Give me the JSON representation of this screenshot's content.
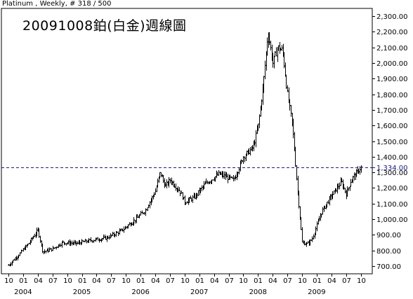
{
  "header": {
    "instrument": "Platinum",
    "period": "Weekly",
    "bar_count": "# 318 / 500"
  },
  "chart_data": {
    "type": "candlestick",
    "title": "20091008鉑(白金)週線圖",
    "frequency": "weekly",
    "x_range": [
      "2003-10",
      "2009-10"
    ],
    "ylim": [
      650,
      2350
    ],
    "yticks": [
      700,
      800,
      900,
      1000,
      1100,
      1200,
      1300,
      1400,
      1500,
      1600,
      1700,
      1800,
      1900,
      2000,
      2100,
      2200,
      2300
    ],
    "ytick_labels": [
      "700.00",
      "800.00",
      "900.00",
      "1,000.00",
      "1,100.00",
      "1,200.00",
      "1,300.00",
      "1,400.00",
      "1,500.00",
      "1,600.00",
      "1,700.00",
      "1,800.00",
      "1,900.00",
      "2,000.00",
      "2,100.00",
      "2,200.00",
      "2,300.00"
    ],
    "xtick_labels": [
      "10",
      "01",
      "04",
      "07",
      "10",
      "01",
      "04",
      "07",
      "10",
      "01",
      "04",
      "07",
      "10",
      "01",
      "04",
      "07",
      "10",
      "01",
      "04",
      "07",
      "10",
      "01",
      "04",
      "07",
      "10"
    ],
    "year_labels": [
      "2004",
      "2005",
      "2006",
      "2007",
      "2008",
      "2009"
    ],
    "reference_line": {
      "value": 1334,
      "label": "1,334.00",
      "color": "#1a1a8c",
      "style": "dashed"
    },
    "price_path": [
      [
        "2003-10",
        705
      ],
      [
        "2003-12",
        770
      ],
      [
        "2004-02",
        840
      ],
      [
        "2004-04",
        930
      ],
      [
        "2004-05",
        790
      ],
      [
        "2004-07",
        810
      ],
      [
        "2004-09",
        850
      ],
      [
        "2004-12",
        845
      ],
      [
        "2005-03",
        865
      ],
      [
        "2005-06",
        880
      ],
      [
        "2005-09",
        925
      ],
      [
        "2005-12",
        1000
      ],
      [
        "2006-02",
        1060
      ],
      [
        "2006-04",
        1180
      ],
      [
        "2006-05",
        1300
      ],
      [
        "2006-06",
        1210
      ],
      [
        "2006-07",
        1250
      ],
      [
        "2006-09",
        1180
      ],
      [
        "2006-10",
        1110
      ],
      [
        "2006-12",
        1140
      ],
      [
        "2007-02",
        1220
      ],
      [
        "2007-05",
        1290
      ],
      [
        "2007-08",
        1250
      ],
      [
        "2007-10",
        1400
      ],
      [
        "2007-12",
        1460
      ],
      [
        "2008-01",
        1600
      ],
      [
        "2008-02",
        1850
      ],
      [
        "2008-03",
        2200
      ],
      [
        "2008-04",
        2000
      ],
      [
        "2008-05",
        2100
      ],
      [
        "2008-06",
        2080
      ],
      [
        "2008-07",
        1800
      ],
      [
        "2008-08",
        1600
      ],
      [
        "2008-09",
        1200
      ],
      [
        "2008-10",
        850
      ],
      [
        "2008-11",
        840
      ],
      [
        "2008-12",
        870
      ],
      [
        "2009-01",
        960
      ],
      [
        "2009-02",
        1050
      ],
      [
        "2009-04",
        1150
      ],
      [
        "2009-06",
        1240
      ],
      [
        "2009-07",
        1160
      ],
      [
        "2009-08",
        1250
      ],
      [
        "2009-10",
        1334
      ]
    ]
  },
  "colors": {
    "candle": "#000000",
    "axis": "#000000",
    "background": "#ffffff",
    "ref_label": "#1a1a8c"
  }
}
